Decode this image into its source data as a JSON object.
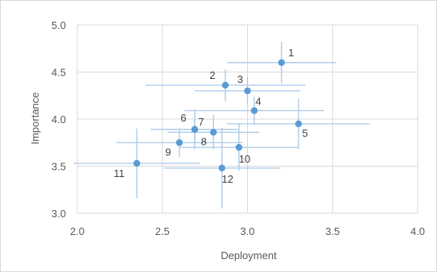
{
  "chart_data": {
    "type": "scatter",
    "title": "",
    "xlabel": "Deployment",
    "ylabel": "Importance",
    "xlim": [
      2.0,
      4.0
    ],
    "ylim": [
      3.0,
      5.0
    ],
    "x_ticks": [
      "2.0",
      "2.5",
      "3.0",
      "3.5",
      "4.0"
    ],
    "y_ticks": [
      "3.0",
      "3.5",
      "4.0",
      "4.5",
      "5.0"
    ],
    "grid": true,
    "legend": "none",
    "error_bars": true,
    "colors": {
      "point": "#5b9bd5",
      "error_bar": "#a9c8e8",
      "grid": "#d9d9d9",
      "text": "#595959"
    },
    "points": [
      {
        "label": "1",
        "x": 3.2,
        "y": 4.6,
        "xerr": 0.32,
        "yerr": 0.22
      },
      {
        "label": "2",
        "x": 2.87,
        "y": 4.36,
        "xerr": 0.47,
        "yerr": 0.17
      },
      {
        "label": "3",
        "x": 3.0,
        "y": 4.3,
        "xerr": 0.31,
        "yerr": 0.15
      },
      {
        "label": "4",
        "x": 3.04,
        "y": 4.09,
        "xerr": 0.41,
        "yerr": 0.15
      },
      {
        "label": "5",
        "x": 3.3,
        "y": 3.95,
        "xerr": 0.42,
        "yerr": 0.27
      },
      {
        "label": "6",
        "x": 2.69,
        "y": 3.89,
        "xerr": 0.26,
        "yerr": 0.21
      },
      {
        "label": "7",
        "x": 2.69,
        "y": 3.89,
        "xerr": 0.23,
        "yerr": 0.16
      },
      {
        "label": "8",
        "x": 2.8,
        "y": 3.86,
        "xerr": 0.27,
        "yerr": 0.18
      },
      {
        "label": "9",
        "x": 2.6,
        "y": 3.75,
        "xerr": 0.37,
        "yerr": 0.15
      },
      {
        "label": "10",
        "x": 2.95,
        "y": 3.7,
        "xerr": 0.35,
        "yerr": 0.25
      },
      {
        "label": "11",
        "x": 2.35,
        "y": 3.53,
        "xerr": 0.37,
        "yerr": 0.37
      },
      {
        "label": "12",
        "x": 2.85,
        "y": 3.48,
        "xerr": 0.34,
        "yerr": 0.43
      }
    ]
  }
}
